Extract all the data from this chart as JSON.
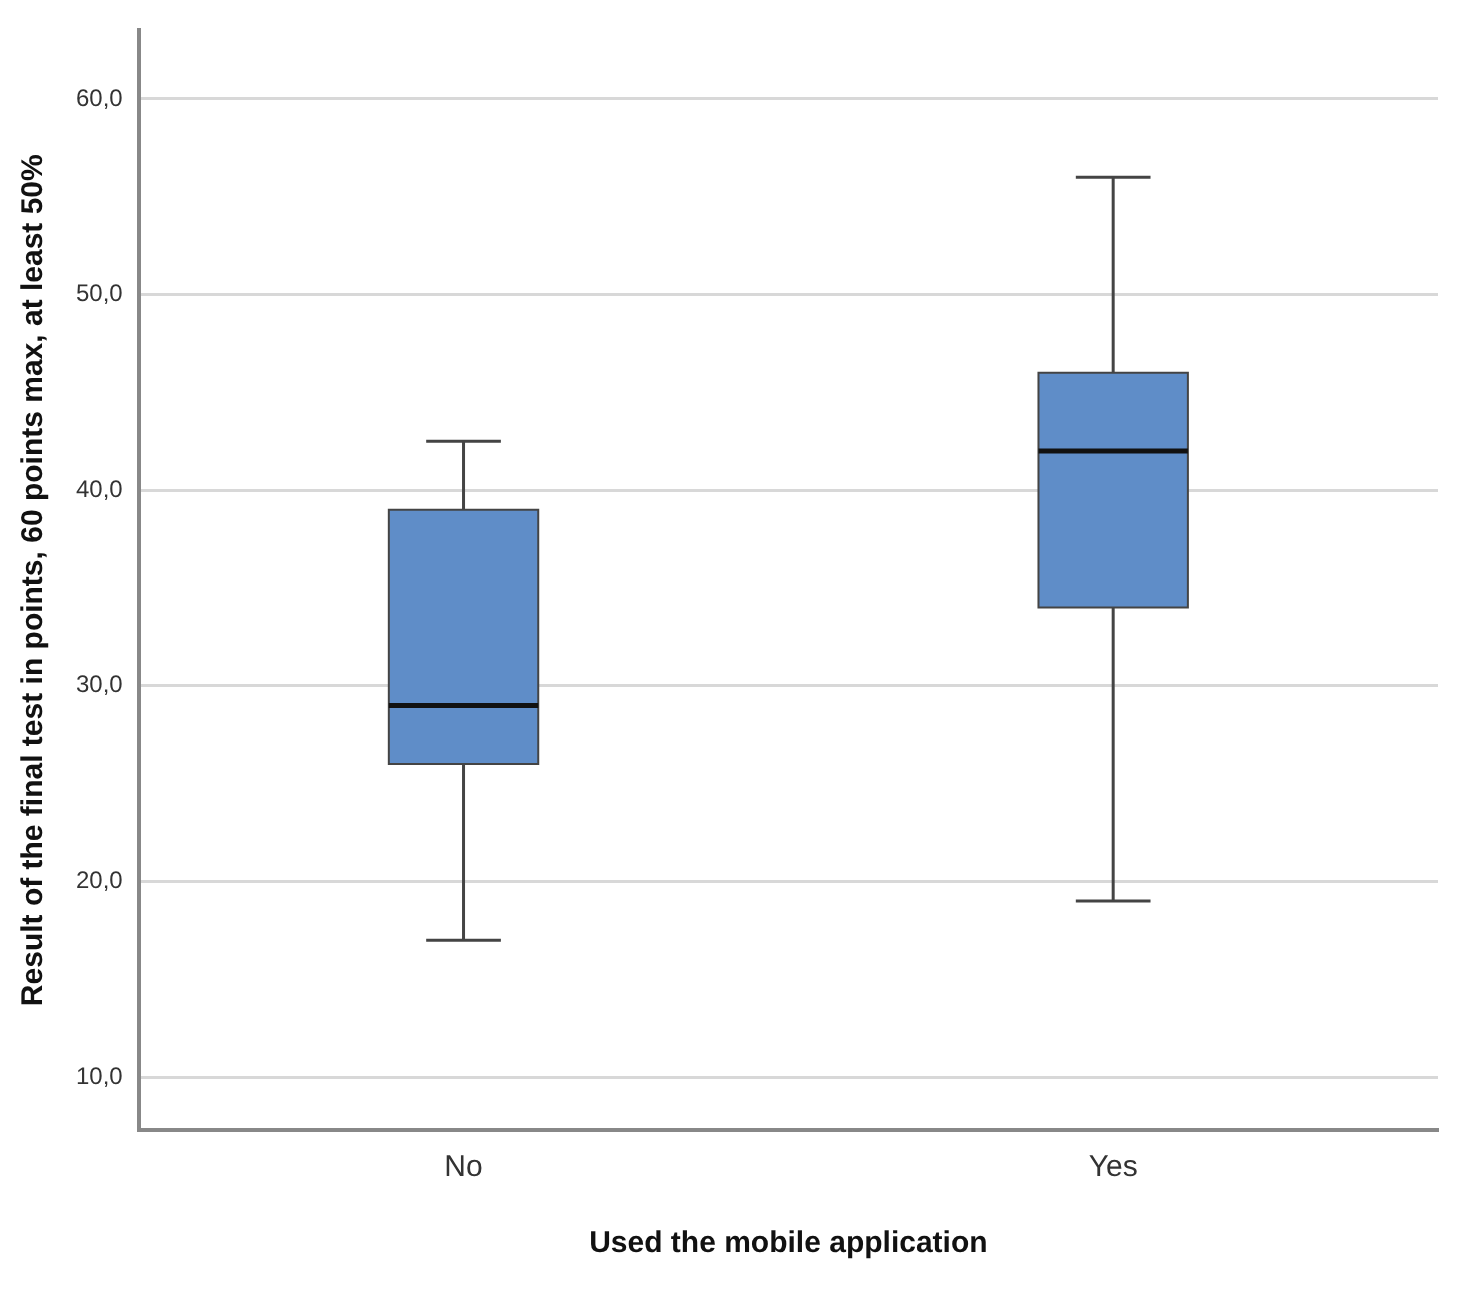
{
  "chart_data": {
    "type": "box",
    "xlabel": "Used the mobile application",
    "ylabel": "Result of the final test in points, 60 points max, at least 50%",
    "categories": [
      "No",
      "Yes"
    ],
    "boxes": [
      {
        "low": 17,
        "q1": 26,
        "median": 29,
        "q3": 39,
        "high": 42.5
      },
      {
        "low": 19,
        "q1": 34,
        "median": 42,
        "q3": 46,
        "high": 56
      }
    ],
    "color": "#5f8dc8",
    "ylim": [
      7.3,
      63.5
    ],
    "yticks": [
      {
        "value": 10,
        "label": "10,0"
      },
      {
        "value": 20,
        "label": "20,0"
      },
      {
        "value": 30,
        "label": "30,0"
      },
      {
        "value": 40,
        "label": "40,0"
      },
      {
        "value": 50,
        "label": "50,0"
      },
      {
        "value": 60,
        "label": "60,0"
      }
    ],
    "grid": "y",
    "legend": false
  }
}
